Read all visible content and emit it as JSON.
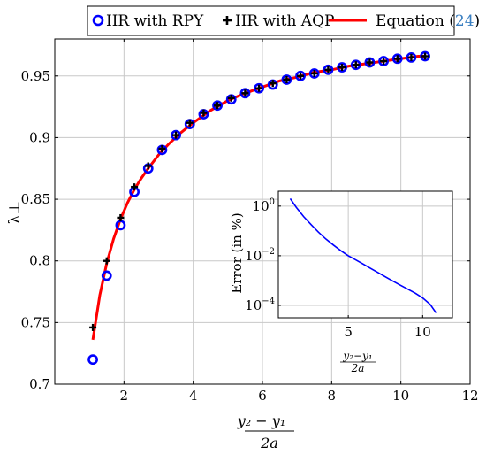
{
  "chart_data": [
    {
      "type": "scatter",
      "xlabel_num": "y₂ − y₁",
      "xlabel_den": "2a",
      "ylabel": "λ⊥",
      "xlim": [
        0,
        12
      ],
      "ylim": [
        0.7,
        0.98
      ],
      "xticks": [
        2,
        4,
        6,
        8,
        10,
        12
      ],
      "yticks": [
        0.7,
        0.75,
        0.8,
        0.85,
        0.9,
        0.95
      ],
      "ytick_labels": [
        "0.7",
        "0.75",
        "0.8",
        "0.85",
        "0.9",
        "0.95"
      ],
      "grid": true,
      "legend_position": "top",
      "series": [
        {
          "name": "IIR with RPY",
          "marker": "circle",
          "color": "#0000ff",
          "x": [
            1.1,
            1.5,
            1.9,
            2.3,
            2.7,
            3.1,
            3.5,
            3.9,
            4.3,
            4.7,
            5.1,
            5.5,
            5.9,
            6.3,
            6.7,
            7.1,
            7.5,
            7.9,
            8.3,
            8.7,
            9.1,
            9.5,
            9.9,
            10.3,
            10.7
          ],
          "y": [
            0.72,
            0.788,
            0.829,
            0.856,
            0.875,
            0.89,
            0.902,
            0.911,
            0.919,
            0.926,
            0.931,
            0.936,
            0.94,
            0.943,
            0.947,
            0.95,
            0.952,
            0.955,
            0.957,
            0.959,
            0.961,
            0.962,
            0.964,
            0.965,
            0.966
          ]
        },
        {
          "name": "IIR with AQP",
          "marker": "plus",
          "color": "#000000",
          "x": [
            1.1,
            1.5,
            1.9,
            2.3,
            2.7,
            3.1,
            3.5,
            3.9,
            4.3,
            4.7,
            5.1,
            5.5,
            5.9,
            6.3,
            6.7,
            7.1,
            7.5,
            7.9,
            8.3,
            8.7,
            9.1,
            9.5,
            9.9,
            10.3,
            10.7
          ],
          "y": [
            0.746,
            0.8,
            0.835,
            0.86,
            0.877,
            0.891,
            0.902,
            0.912,
            0.92,
            0.926,
            0.932,
            0.936,
            0.94,
            0.944,
            0.947,
            0.95,
            0.952,
            0.955,
            0.957,
            0.959,
            0.961,
            0.962,
            0.964,
            0.965,
            0.966
          ]
        },
        {
          "name": "Equation",
          "name_ref": "24",
          "marker": "line",
          "color": "#ff0000",
          "ref_color": "#3a7fc1",
          "x": [
            1.1,
            1.3,
            1.5,
            1.7,
            1.9,
            2.1,
            2.3,
            2.5,
            2.7,
            3.0,
            3.3,
            3.6,
            4.0,
            4.5,
            5.0,
            5.5,
            6.0,
            6.5,
            7.0,
            7.5,
            8.0,
            8.5,
            9.0,
            9.5,
            10.0,
            10.5,
            10.7
          ],
          "y": [
            0.736,
            0.772,
            0.798,
            0.818,
            0.834,
            0.847,
            0.858,
            0.867,
            0.875,
            0.886,
            0.895,
            0.903,
            0.912,
            0.922,
            0.93,
            0.936,
            0.941,
            0.946,
            0.949,
            0.953,
            0.955,
            0.958,
            0.96,
            0.962,
            0.964,
            0.966,
            0.966
          ]
        }
      ]
    },
    {
      "type": "line",
      "ylabel": "Error (in %)",
      "xlabel_num": "y₂−y₁",
      "xlabel_den": "2a",
      "yscale": "log",
      "xlim": [
        0.3,
        12.0
      ],
      "ylim_log10": [
        -4.5,
        0.6
      ],
      "xticks": [
        5,
        10
      ],
      "yticks": [
        {
          "base": "10",
          "exp": "0",
          "value": 1
        },
        {
          "base": "10",
          "exp": "−2",
          "value": 0.01
        },
        {
          "base": "10",
          "exp": "−4",
          "value": 0.0001
        }
      ],
      "grid": true,
      "color": "#0000ff",
      "x": [
        1.1,
        1.5,
        2.0,
        2.5,
        3.0,
        3.5,
        4.0,
        4.5,
        5.0,
        5.5,
        6.0,
        6.5,
        7.0,
        7.5,
        8.0,
        8.5,
        9.0,
        9.5,
        10.0,
        10.5,
        10.9
      ],
      "y": [
        2.0,
        0.9,
        0.38,
        0.18,
        0.089,
        0.047,
        0.027,
        0.016,
        0.01,
        0.0068,
        0.0046,
        0.0031,
        0.0021,
        0.0014,
        0.00095,
        0.00065,
        0.00045,
        0.00031,
        0.0002,
        0.00011,
        5e-05
      ]
    }
  ]
}
